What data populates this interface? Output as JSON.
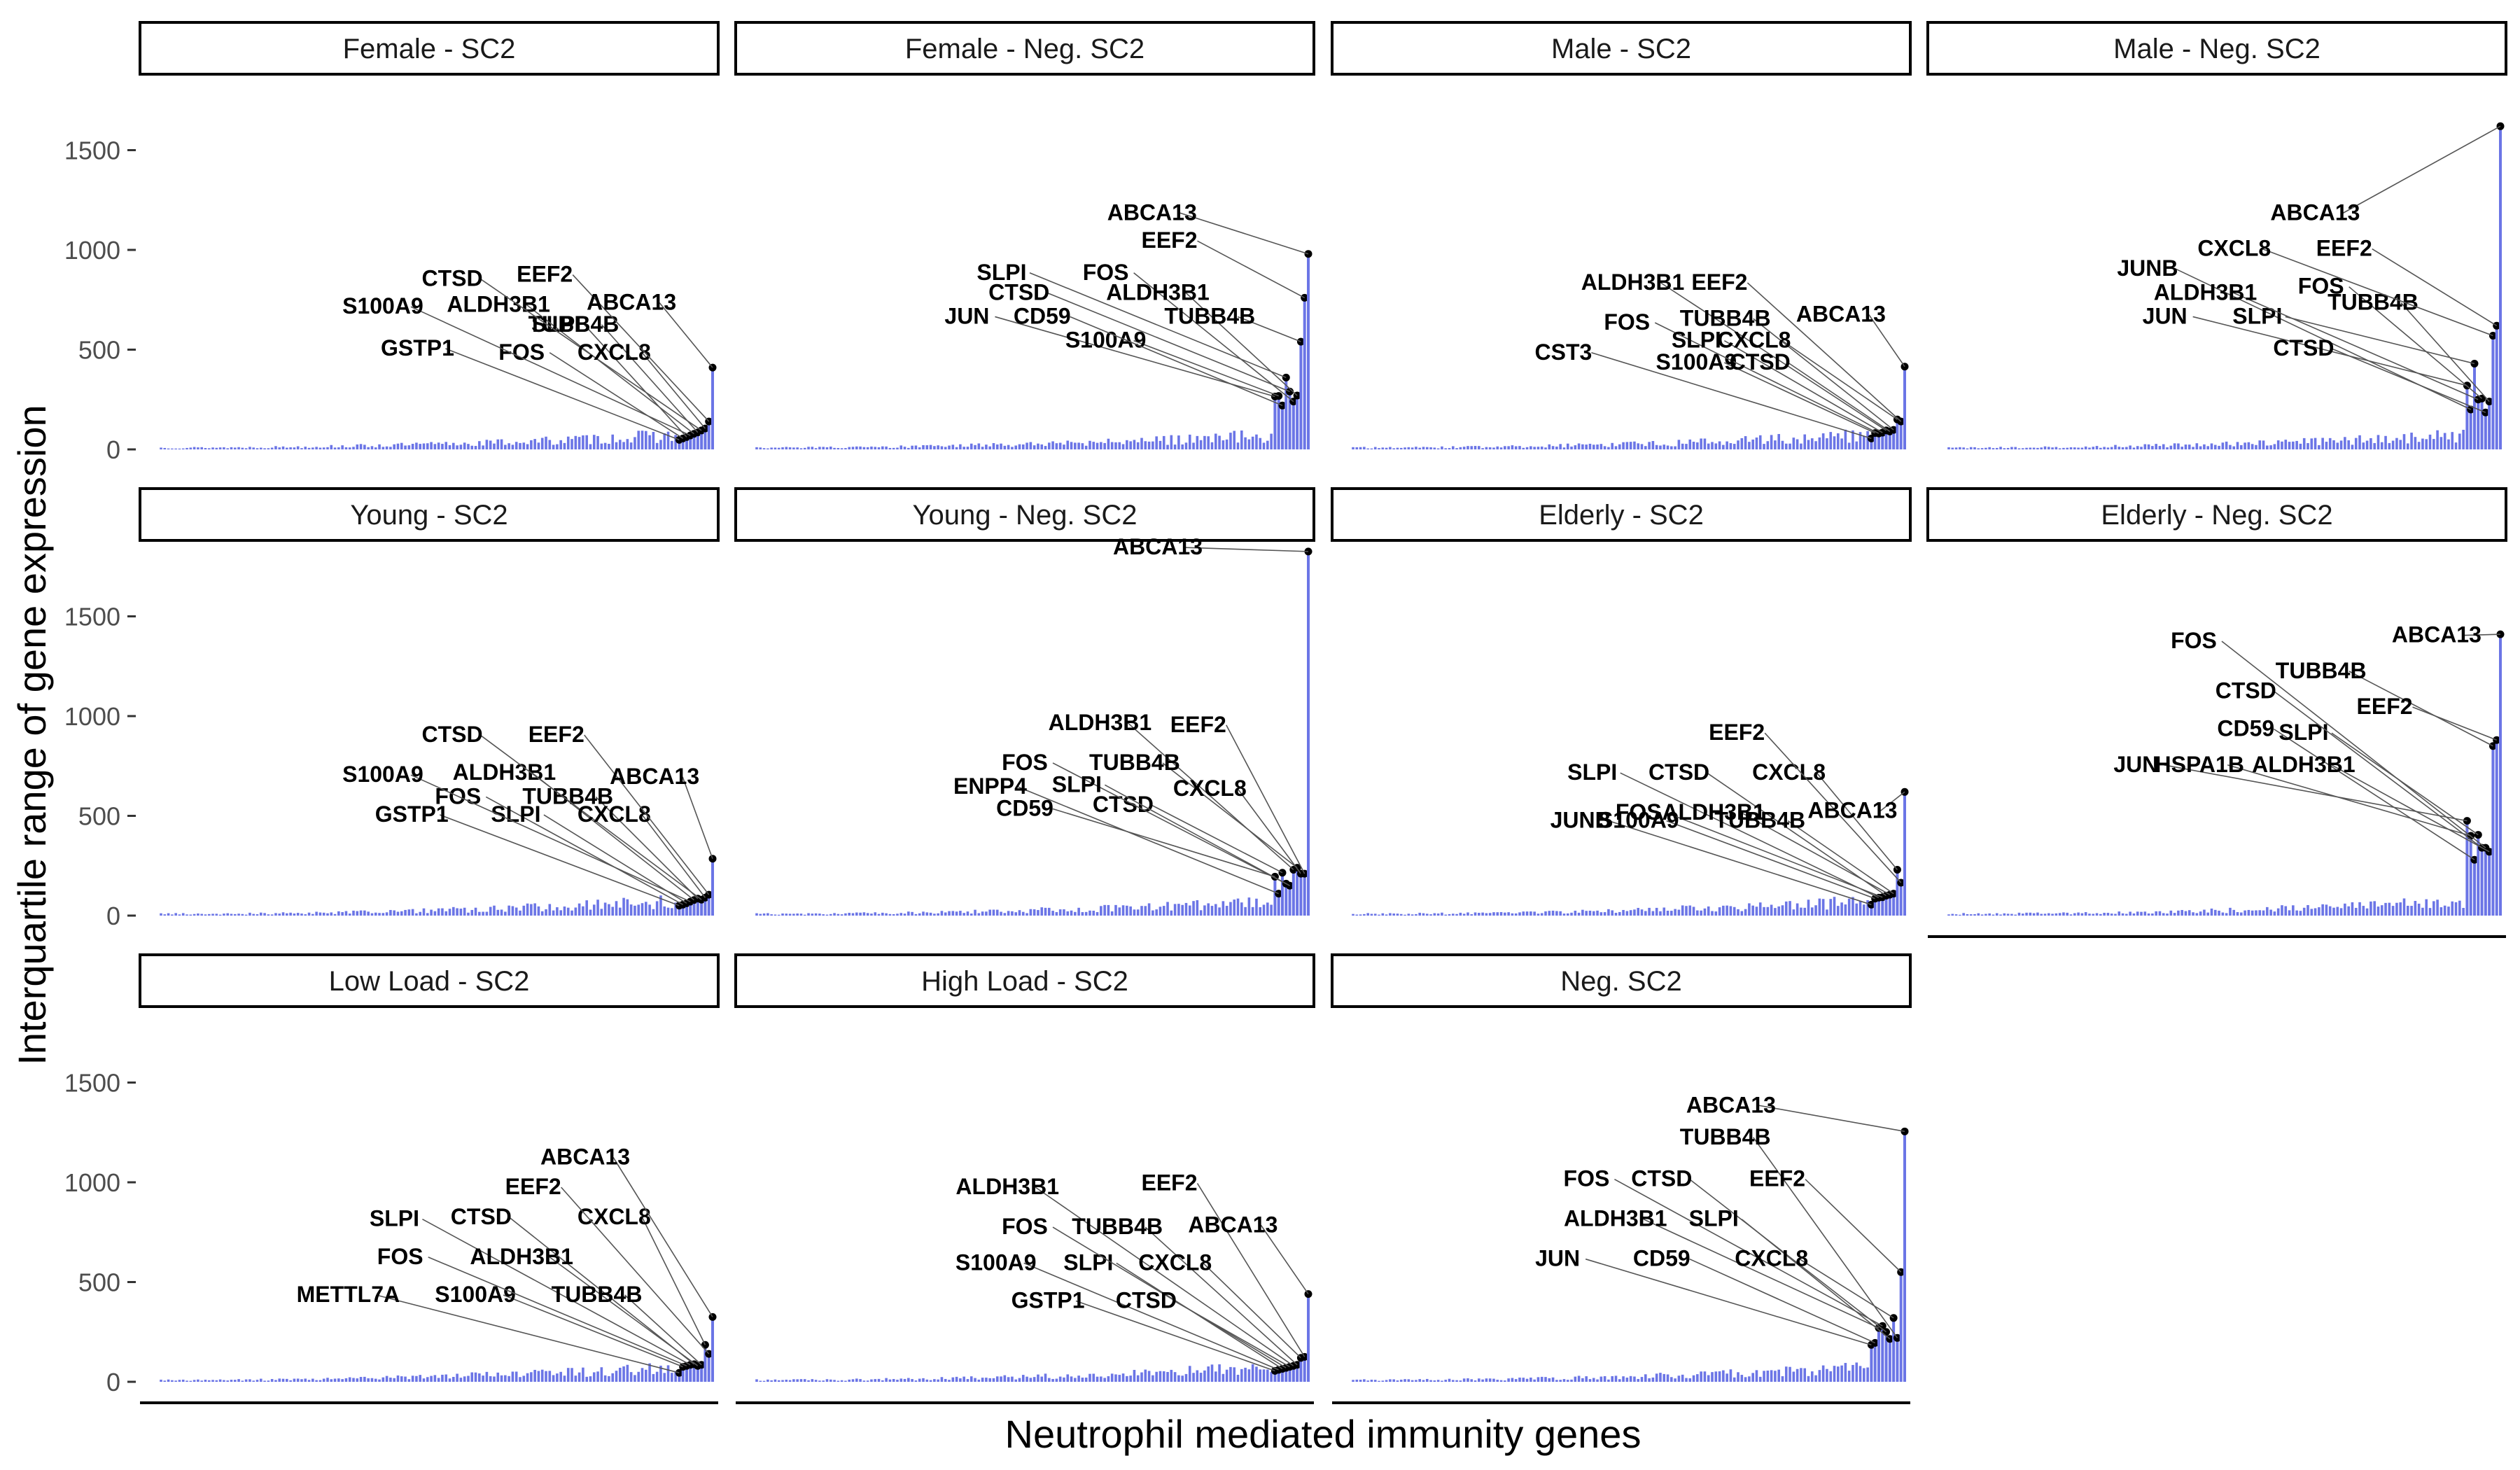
{
  "chart_data": {
    "type": "bar",
    "layout": "faceted 3x4 grid, shared y axis",
    "xlabel": "Neutrophil mediated immunity genes",
    "ylabel": "Interquartile range of gene expression",
    "ylim": [
      0,
      1800
    ],
    "yticks": [
      0,
      500,
      1000,
      1500
    ],
    "bar_color": "#6b75e6",
    "point_color": "#000000",
    "grid": false,
    "facets": [
      {
        "title": "Female - SC2",
        "genes": [
          {
            "label": "GSTP1",
            "value": 48
          },
          {
            "label": "FOS",
            "value": 55
          },
          {
            "label": "SLPI",
            "value": 62
          },
          {
            "label": "S100A9",
            "value": 70
          },
          {
            "label": "ALDH3B1",
            "value": 78
          },
          {
            "label": "TUBB4B",
            "value": 85
          },
          {
            "label": "CTSD",
            "value": 95
          },
          {
            "label": "CXCL8",
            "value": 105
          },
          {
            "label": "EEF2",
            "value": 140
          },
          {
            "label": "ABCA13",
            "value": 410
          }
        ]
      },
      {
        "title": "Female - Neg. SC2",
        "genes": [
          {
            "label": "JUN",
            "value": 265
          },
          {
            "label": "S100A9",
            "value": 268
          },
          {
            "label": "CD59",
            "value": 220
          },
          {
            "label": "SLPI",
            "value": 360
          },
          {
            "label": "CTSD",
            "value": 290
          },
          {
            "label": "FOS",
            "value": 240
          },
          {
            "label": "ALDH3B1",
            "value": 270
          },
          {
            "label": "TUBB4B",
            "value": 540
          },
          {
            "label": "EEF2",
            "value": 760
          },
          {
            "label": "ABCA13",
            "value": 980
          }
        ]
      },
      {
        "title": "Male - SC2",
        "genes": [
          {
            "label": "CST3",
            "value": 55
          },
          {
            "label": "S100A9",
            "value": 82
          },
          {
            "label": "FOS",
            "value": 80
          },
          {
            "label": "SLPI",
            "value": 84
          },
          {
            "label": "ALDH3B1",
            "value": 95
          },
          {
            "label": "CTSD",
            "value": 90
          },
          {
            "label": "TUBB4B",
            "value": 98
          },
          {
            "label": "CXCL8",
            "value": 150
          },
          {
            "label": "EEF2",
            "value": 140
          },
          {
            "label": "ABCA13",
            "value": 415
          }
        ]
      },
      {
        "title": "Male - Neg. SC2",
        "genes": [
          {
            "label": "JUN",
            "value": 320
          },
          {
            "label": "JUNB",
            "value": 200
          },
          {
            "label": "SLPI",
            "value": 430
          },
          {
            "label": "ALDH3B1",
            "value": 250
          },
          {
            "label": "FOS",
            "value": 255
          },
          {
            "label": "CTSD",
            "value": 185
          },
          {
            "label": "TUBB4B",
            "value": 240
          },
          {
            "label": "CXCL8",
            "value": 570
          },
          {
            "label": "EEF2",
            "value": 620
          },
          {
            "label": "ABCA13",
            "value": 1620
          }
        ]
      },
      {
        "title": "Young - SC2",
        "genes": [
          {
            "label": "GSTP1",
            "value": 50
          },
          {
            "label": "FOS",
            "value": 55
          },
          {
            "label": "SLPI",
            "value": 62
          },
          {
            "label": "S100A9",
            "value": 70
          },
          {
            "label": "ALDH3B1",
            "value": 78
          },
          {
            "label": "TUBB4B",
            "value": 85
          },
          {
            "label": "CTSD",
            "value": 80
          },
          {
            "label": "CXCL8",
            "value": 90
          },
          {
            "label": "EEF2",
            "value": 105
          },
          {
            "label": "ABCA13",
            "value": 285
          }
        ]
      },
      {
        "title": "Young - Neg. SC2",
        "genes": [
          {
            "label": "CD59",
            "value": 195
          },
          {
            "label": "ENPP4",
            "value": 110
          },
          {
            "label": "CTSD",
            "value": 215
          },
          {
            "label": "FOS",
            "value": 160
          },
          {
            "label": "SLPI",
            "value": 150
          },
          {
            "label": "ALDH3B1",
            "value": 230
          },
          {
            "label": "TUBB4B",
            "value": 240
          },
          {
            "label": "CXCL8",
            "value": 210
          },
          {
            "label": "EEF2",
            "value": 210
          },
          {
            "label": "ABCA13",
            "value": 1825
          }
        ]
      },
      {
        "title": "Elderly - SC2",
        "genes": [
          {
            "label": "JUNB",
            "value": 55
          },
          {
            "label": "S100A9",
            "value": 85
          },
          {
            "label": "SLPI",
            "value": 90
          },
          {
            "label": "FOS",
            "value": 92
          },
          {
            "label": "CTSD",
            "value": 100
          },
          {
            "label": "ALDH3B1",
            "value": 105
          },
          {
            "label": "TUBB4B",
            "value": 110
          },
          {
            "label": "CXCL8",
            "value": 230
          },
          {
            "label": "EEF2",
            "value": 165
          },
          {
            "label": "ABCA13",
            "value": 620
          }
        ]
      },
      {
        "title": "Elderly - Neg. SC2",
        "genes": [
          {
            "label": "JUN",
            "value": 475
          },
          {
            "label": "HSPA1B",
            "value": 400
          },
          {
            "label": "CD59",
            "value": 280
          },
          {
            "label": "SLPI",
            "value": 405
          },
          {
            "label": "CTSD",
            "value": 340
          },
          {
            "label": "FOS",
            "value": 340
          },
          {
            "label": "ALDH3B1",
            "value": 320
          },
          {
            "label": "TUBB4B",
            "value": 850
          },
          {
            "label": "EEF2",
            "value": 880
          },
          {
            "label": "ABCA13",
            "value": 1410
          }
        ]
      },
      {
        "title": "Low Load - SC2",
        "genes": [
          {
            "label": "METTL7A",
            "value": 45
          },
          {
            "label": "S100A9",
            "value": 75
          },
          {
            "label": "FOS",
            "value": 80
          },
          {
            "label": "SLPI",
            "value": 85
          },
          {
            "label": "CTSD",
            "value": 88
          },
          {
            "label": "ALDH3B1",
            "value": 80
          },
          {
            "label": "TUBB4B",
            "value": 85
          },
          {
            "label": "CXCL8",
            "value": 185
          },
          {
            "label": "EEF2",
            "value": 140
          },
          {
            "label": "ABCA13",
            "value": 325
          }
        ]
      },
      {
        "title": "High Load - SC2",
        "genes": [
          {
            "label": "GSTP1",
            "value": 55
          },
          {
            "label": "S100A9",
            "value": 60
          },
          {
            "label": "SLPI",
            "value": 65
          },
          {
            "label": "FOS",
            "value": 70
          },
          {
            "label": "CTSD",
            "value": 75
          },
          {
            "label": "ALDH3B1",
            "value": 80
          },
          {
            "label": "TUBB4B",
            "value": 85
          },
          {
            "label": "CXCL8",
            "value": 120
          },
          {
            "label": "EEF2",
            "value": 125
          },
          {
            "label": "ABCA13",
            "value": 440
          }
        ]
      },
      {
        "title": "Neg. SC2",
        "genes": [
          {
            "label": "JUN",
            "value": 185
          },
          {
            "label": "CD59",
            "value": 195
          },
          {
            "label": "ALDH3B1",
            "value": 270
          },
          {
            "label": "FOS",
            "value": 280
          },
          {
            "label": "CTSD",
            "value": 250
          },
          {
            "label": "SLPI",
            "value": 215
          },
          {
            "label": "CXCL8",
            "value": 320
          },
          {
            "label": "TUBB4B",
            "value": 220
          },
          {
            "label": "EEF2",
            "value": 550
          },
          {
            "label": "ABCA13",
            "value": 1255
          }
        ]
      }
    ]
  }
}
